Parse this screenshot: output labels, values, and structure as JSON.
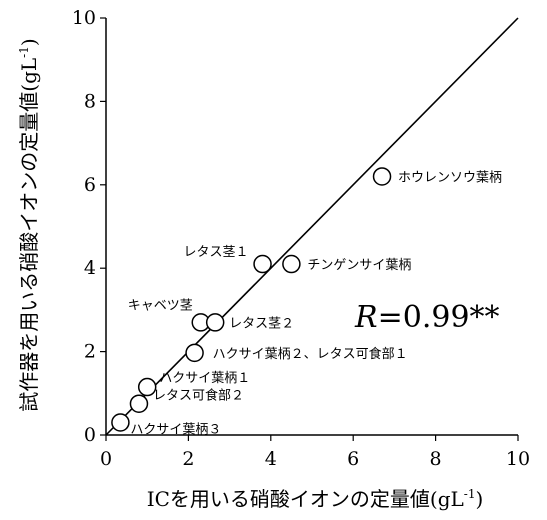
{
  "chart_data": {
    "type": "scatter",
    "title": "",
    "xlabel": "ICを用いる硝酸イオンの定量値(gL",
    "ylabel": "試作器を用いる硝酸イオンの定量値(gL",
    "label_superscript": "-1",
    "label_close": ")",
    "xlim": [
      0,
      10
    ],
    "ylim": [
      0,
      10
    ],
    "xticks": [
      0,
      2,
      4,
      6,
      8,
      10
    ],
    "yticks": [
      0,
      2,
      4,
      6,
      8,
      10
    ],
    "grid": false,
    "reference_line": {
      "x": [
        0,
        10
      ],
      "y": [
        0,
        10
      ]
    },
    "annotation": {
      "var": "R",
      "rest": "=0.99**"
    },
    "points": [
      {
        "x": 0.35,
        "y": 0.3,
        "label": "ハクサイ葉柄３"
      },
      {
        "x": 0.8,
        "y": 0.75,
        "label": "レタス可食部２"
      },
      {
        "x": 1.0,
        "y": 1.15,
        "label": "ハクサイ葉柄１"
      },
      {
        "x": 2.15,
        "y": 1.97,
        "label": "ハクサイ葉柄２、レタス可食部１"
      },
      {
        "x": 2.3,
        "y": 2.7,
        "label": "キャベツ茎"
      },
      {
        "x": 2.65,
        "y": 2.7,
        "label": "レタス茎２"
      },
      {
        "x": 3.8,
        "y": 4.1,
        "label": "レタス茎１"
      },
      {
        "x": 4.5,
        "y": 4.1,
        "label": "チンゲンサイ葉柄"
      },
      {
        "x": 6.7,
        "y": 6.2,
        "label": "ホウレンソウ葉柄"
      }
    ]
  }
}
